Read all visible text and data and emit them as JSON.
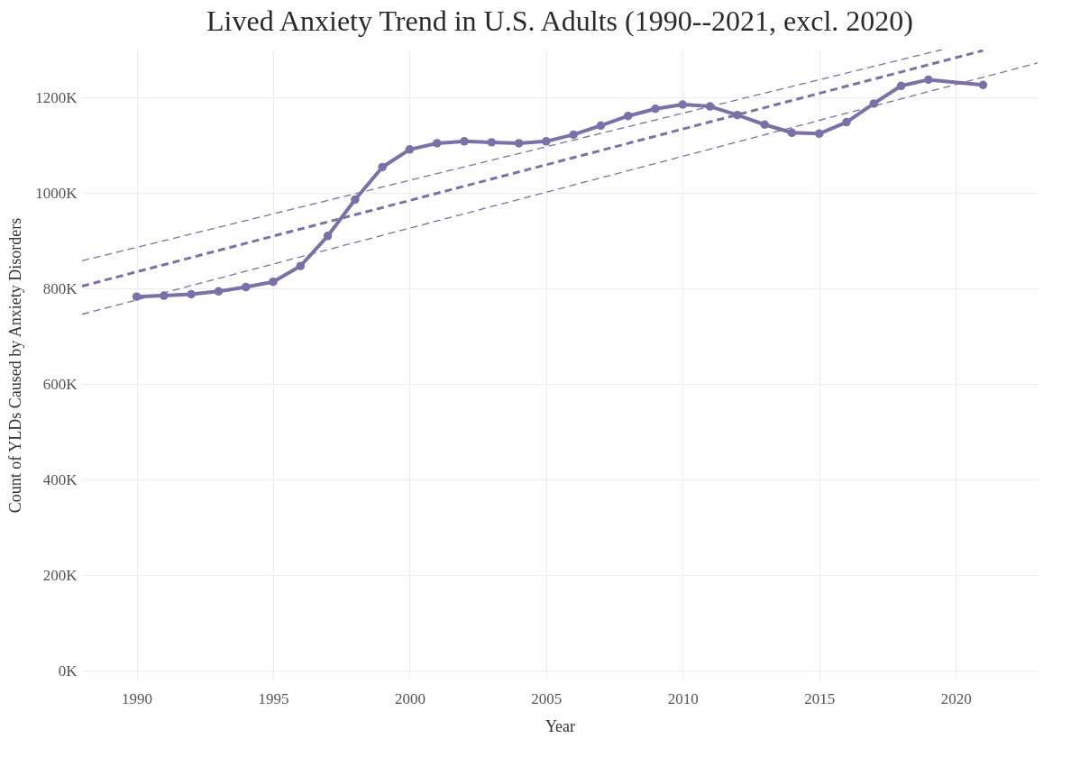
{
  "chart_data": {
    "type": "line",
    "title": "Lived Anxiety Trend in U.S. Adults  (1990--2021, excl. 2020)",
    "xlabel": "Year",
    "ylabel": "Count of YLDs Caused by Anxiety Disorders",
    "xlim": [
      1988,
      2023
    ],
    "xticks": [
      1990,
      1995,
      2000,
      2005,
      2010,
      2015,
      2020
    ],
    "ylim": [
      -20000,
      1300000
    ],
    "yticks": [
      {
        "value": 0,
        "label": "0K"
      },
      {
        "value": 200000,
        "label": "200K"
      },
      {
        "value": 400000,
        "label": "400K"
      },
      {
        "value": 600000,
        "label": "600K"
      },
      {
        "value": 800000,
        "label": "800K"
      },
      {
        "value": 1000000,
        "label": "1000K"
      },
      {
        "value": 1200000,
        "label": "1200K"
      }
    ],
    "grid": true,
    "marker": "circle",
    "series": [
      {
        "color": "#7b70a8",
        "x": [
          1990,
          1991,
          1992,
          1993,
          1994,
          1995,
          1996,
          1997,
          1998,
          1999,
          2000,
          2001,
          2002,
          2003,
          2004,
          2005,
          2006,
          2007,
          2008,
          2009,
          2010,
          2011,
          2012,
          2013,
          2014,
          2015,
          2016,
          2017,
          2018,
          2019,
          2021
        ],
        "values": [
          783000,
          785000,
          788000,
          794000,
          803000,
          814000,
          847000,
          910000,
          986000,
          1054000,
          1091000,
          1104000,
          1108000,
          1106000,
          1104000,
          1108000,
          1122000,
          1141000,
          1161000,
          1176000,
          1185000,
          1181000,
          1163000,
          1143000,
          1126000,
          1124000,
          1148000,
          1187000,
          1224000,
          1237000,
          1226000
        ]
      },
      {
        "type": "line",
        "color": "#7b70a8",
        "line_style": "dashed",
        "marker": "none",
        "x": [
          1988,
          2021
        ],
        "values": [
          805000,
          1298000
        ]
      },
      {
        "type": "line",
        "color": "#7b70a8",
        "line_style": "dashed",
        "marker": "none",
        "x": [
          1988,
          2019.5
        ],
        "values": [
          858000,
          1300000
        ]
      },
      {
        "type": "line",
        "color": "#7b70a8",
        "line_style": "dashed",
        "marker": "none",
        "x": [
          1988,
          2023
        ],
        "values": [
          746000,
          1272000
        ]
      }
    ]
  }
}
